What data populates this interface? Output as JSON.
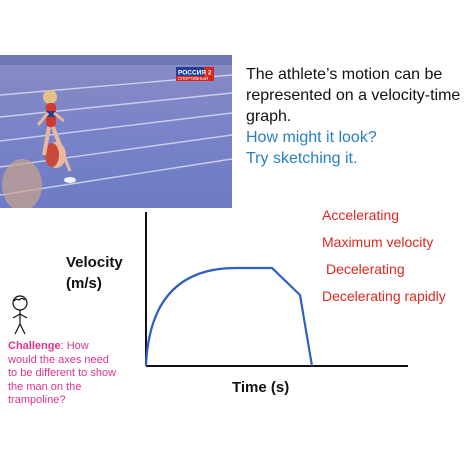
{
  "intro": {
    "line1": "The athlete’s motion can be represented on a velocity-time graph.",
    "line2": "How might it look?",
    "line3": "Try sketching it."
  },
  "photo": {
    "channel_logo_text": "РОССИЯ 2",
    "channel_sub_text": "СПОРТИВНЫЙ"
  },
  "graph": {
    "y_label_1": "Velocity",
    "y_label_2": "(m/s)",
    "x_label": "Time (s)",
    "curve_color": "#2f5fc4"
  },
  "phases": [
    "Accelerating",
    "Maximum velocity",
    "Decelerating",
    "Decelerating rapidly"
  ],
  "challenge": {
    "bold": "Challenge",
    "text": ": How would the axes need to be different to show the man on the trampoline?"
  }
}
